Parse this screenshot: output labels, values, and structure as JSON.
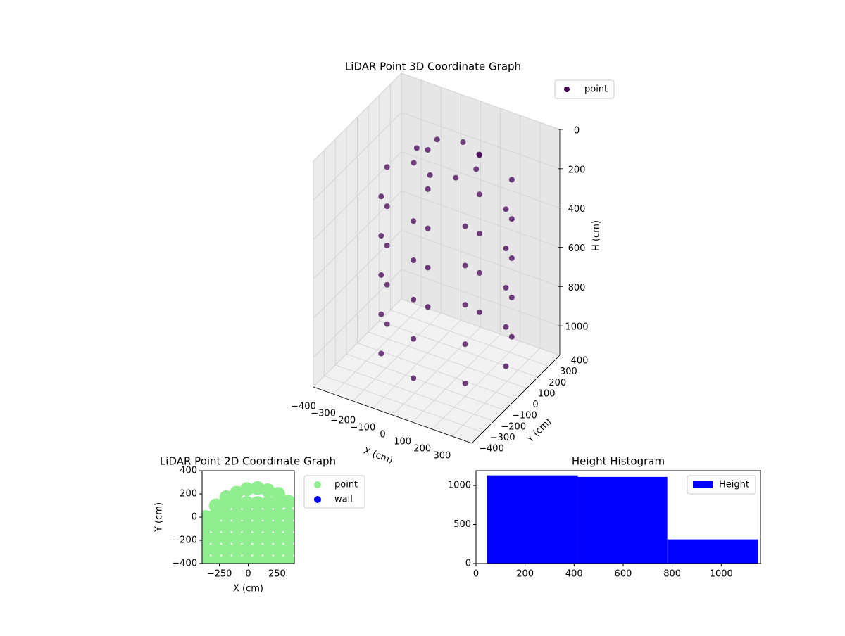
{
  "chart_data": [
    {
      "type": "scatter3d",
      "title": "LiDAR Point 3D Coordinate Graph",
      "xlabel": "X (cm)",
      "ylabel": "Y (cm)",
      "zlabel": "H (cm)",
      "xlim": [
        -400,
        400
      ],
      "ylim": [
        -400,
        400
      ],
      "zlim": [
        0,
        1150
      ],
      "z_inverted": true,
      "xticks": [
        {
          "value": -400,
          "label": "−400"
        },
        {
          "value": -300,
          "label": "−300"
        },
        {
          "value": -200,
          "label": "−200"
        },
        {
          "value": -100,
          "label": "−100"
        },
        0,
        100,
        200,
        300
      ],
      "yticks": [
        {
          "value": -400,
          "label": "−400"
        },
        {
          "value": -300,
          "label": "−300"
        },
        {
          "value": -200,
          "label": "−200"
        },
        {
          "value": -100,
          "label": "−100"
        },
        0,
        100,
        200,
        300,
        400
      ],
      "zticks": [
        0,
        200,
        400,
        600,
        800,
        1000
      ],
      "legend": "upper right",
      "series": [
        {
          "name": "point",
          "color": "#440154",
          "x": [
            200,
            156,
            50,
            -56,
            -100,
            -56,
            50,
            156,
            350,
            262,
            50,
            -162,
            -250,
            -162,
            50,
            262,
            350,
            262,
            50,
            -162,
            -250,
            -162,
            50,
            262,
            350,
            262,
            50,
            -162,
            -250,
            -162,
            50,
            262,
            350,
            262,
            50,
            -162,
            -250,
            -162,
            50,
            262,
            350,
            262,
            50,
            -162,
            -250,
            -162,
            50,
            262
          ],
          "y": [
            0,
            106,
            150,
            106,
            0,
            -106,
            -150,
            -106,
            0,
            212,
            300,
            212,
            0,
            -212,
            -300,
            -212,
            0,
            212,
            300,
            212,
            0,
            -212,
            -300,
            -212,
            0,
            212,
            300,
            212,
            0,
            -212,
            -300,
            -212,
            0,
            212,
            300,
            212,
            0,
            -212,
            -300,
            -212,
            0,
            212,
            300,
            212,
            0,
            -212,
            -300,
            -212
          ],
          "z": [
            50,
            50,
            50,
            50,
            50,
            50,
            50,
            50,
            200,
            200,
            200,
            200,
            200,
            200,
            200,
            200,
            400,
            400,
            400,
            400,
            400,
            400,
            400,
            400,
            600,
            600,
            600,
            600,
            600,
            600,
            600,
            600,
            800,
            800,
            800,
            800,
            800,
            800,
            800,
            800,
            1000,
            1000,
            1000,
            1000,
            1000,
            1000,
            1000,
            1000
          ]
        }
      ]
    },
    {
      "type": "scatter",
      "title": "LiDAR Point 2D Coordinate Graph",
      "xlabel": "X (cm)",
      "ylabel": "Y (cm)",
      "xlim": [
        -400,
        400
      ],
      "ylim": [
        -400,
        400
      ],
      "xticks": [
        {
          "value": -250,
          "label": "−250"
        },
        0,
        250
      ],
      "yticks": [
        {
          "value": -400,
          "label": "−400"
        },
        {
          "value": -200,
          "label": "−200"
        },
        0,
        200,
        400
      ],
      "legend": "outside upper right",
      "series": [
        {
          "name": "point",
          "color": "#90ee90",
          "x": [
            -370,
            -370,
            -370,
            -370,
            -370,
            -280,
            -280,
            -280,
            -280,
            -280,
            -280,
            -190,
            -190,
            -190,
            -190,
            -190,
            -190,
            -190,
            -100,
            -100,
            -100,
            -100,
            -100,
            -100,
            -100,
            -10,
            -10,
            -10,
            -10,
            -10,
            -10,
            -10,
            80,
            80,
            80,
            80,
            80,
            80,
            80,
            170,
            170,
            170,
            170,
            170,
            170,
            170,
            260,
            260,
            260,
            260,
            260,
            260,
            260,
            350,
            350,
            350,
            350,
            350,
            350
          ],
          "y": [
            -380,
            -280,
            -180,
            -80,
            0,
            -380,
            -280,
            -180,
            -80,
            20,
            100,
            -380,
            -280,
            -180,
            -80,
            20,
            120,
            170,
            -380,
            -280,
            -180,
            -80,
            20,
            120,
            210,
            -380,
            -280,
            -180,
            -80,
            20,
            120,
            240,
            -380,
            -280,
            -180,
            -80,
            20,
            120,
            250,
            -380,
            -280,
            -180,
            -80,
            20,
            120,
            230,
            -380,
            -280,
            -180,
            -80,
            20,
            120,
            200,
            -380,
            -280,
            -180,
            -80,
            20,
            130
          ]
        },
        {
          "name": "wall",
          "color": "#0000ff",
          "x": [],
          "y": []
        }
      ]
    },
    {
      "type": "histogram",
      "title": "Height Histogram",
      "bins": [
        45,
        415,
        780,
        1150
      ],
      "counts": [
        1130,
        1110,
        310
      ],
      "name": "Height",
      "color": "#0000ff",
      "xlim": [
        0,
        1160
      ],
      "ylim": [
        0,
        1190
      ],
      "xticks": [
        0,
        200,
        400,
        600,
        800,
        1000
      ],
      "yticks": [
        0,
        500,
        1000
      ],
      "legend": "upper right"
    }
  ]
}
